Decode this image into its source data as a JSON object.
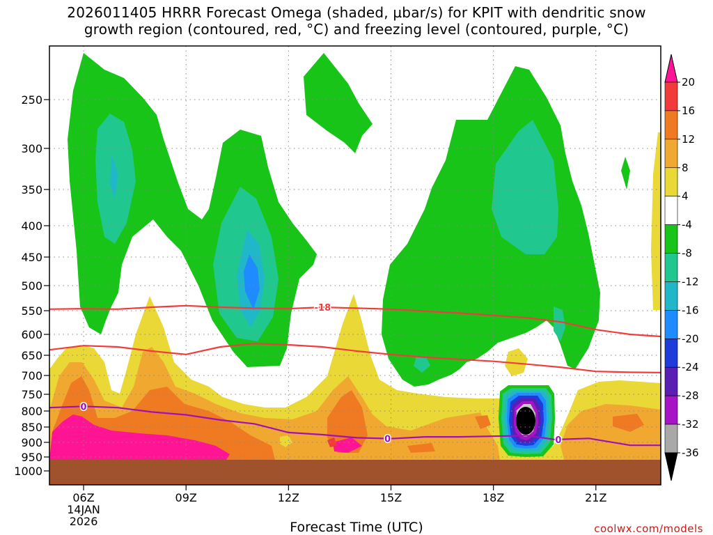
{
  "title_line1": "2026011405 HRRR Forecast Omega (shaded, µbar/s) for KPIT with dendritic snow",
  "title_line2": "growth region (contoured, red, °C) and freezing level (contoured, purple, °C)",
  "credit": "coolwx.com/models",
  "chart_data": {
    "type": "heatmap",
    "title": "2026011405 HRRR Forecast Omega (shaded, µbar/s) for KPIT with dendritic snow growth region (contoured, red, °C) and freezing level (contoured, purple, °C)",
    "xlabel": "Forecast Time (UTC)",
    "ylabel": "",
    "x_ticks": [
      {
        "hour": 6,
        "label": "06Z",
        "date_line1": "14JAN",
        "date_line2": "2026"
      },
      {
        "hour": 9,
        "label": "09Z"
      },
      {
        "hour": 12,
        "label": "12Z"
      },
      {
        "hour": 15,
        "label": "15Z"
      },
      {
        "hour": 18,
        "label": "18Z"
      },
      {
        "hour": 21,
        "label": "21Z"
      }
    ],
    "xlim_hours": [
      5,
      22.9
    ],
    "y_axis": "pressure (hPa), inverted, log-like",
    "y_ticks": [
      250,
      300,
      350,
      400,
      450,
      500,
      550,
      600,
      650,
      700,
      750,
      800,
      850,
      900,
      950,
      1000
    ],
    "ylim": [
      200,
      1025
    ],
    "colorbar": {
      "labels": [
        "20",
        "16",
        "12",
        "8",
        "4",
        "-4",
        "-8",
        "-12",
        "-16",
        "-20",
        "-24",
        "-28",
        "-32",
        "-36"
      ],
      "colors": [
        "#ff1493",
        "#f23a3a",
        "#ef7a22",
        "#f0a830",
        "#e9d835",
        "#ffffff",
        "#17c417",
        "#20c890",
        "#20b8c8",
        "#1e8cff",
        "#1e3cdc",
        "#5a1eb4",
        "#a614c8",
        "#a8a8a8",
        "#000000"
      ]
    },
    "contours": [
      {
        "name": "dendritic-upper",
        "color": "#f03c3c",
        "level": -18,
        "label": "-18",
        "label_at_hour": 13.0,
        "points": [
          [
            5.0,
            547
          ],
          [
            6,
            546
          ],
          [
            7,
            547
          ],
          [
            8,
            543
          ],
          [
            9,
            540
          ],
          [
            10,
            543
          ],
          [
            11,
            545
          ],
          [
            12,
            546
          ],
          [
            13,
            543
          ],
          [
            14,
            545
          ],
          [
            15,
            547
          ],
          [
            16,
            551
          ],
          [
            17,
            555
          ],
          [
            18,
            560
          ],
          [
            19,
            565
          ],
          [
            20,
            574
          ],
          [
            21,
            590
          ],
          [
            22,
            600
          ],
          [
            22.9,
            605
          ]
        ]
      },
      {
        "name": "dendritic-lower",
        "color": "#f03c3c",
        "level": -12,
        "points": [
          [
            5.0,
            637
          ],
          [
            6,
            627
          ],
          [
            7,
            630
          ],
          [
            8,
            640
          ],
          [
            9,
            648
          ],
          [
            10,
            630
          ],
          [
            11,
            622
          ],
          [
            12,
            625
          ],
          [
            13,
            630
          ],
          [
            14,
            640
          ],
          [
            15,
            648
          ],
          [
            16,
            655
          ],
          [
            17,
            660
          ],
          [
            18,
            665
          ],
          [
            19,
            672
          ],
          [
            20,
            680
          ],
          [
            21,
            690
          ],
          [
            22,
            692
          ],
          [
            22.9,
            693
          ]
        ]
      },
      {
        "name": "freezing-level",
        "color": "#a010b4",
        "level": 0,
        "label": "0",
        "label_positions": [
          6.0,
          14.9,
          19.9
        ],
        "points": [
          [
            5.0,
            790
          ],
          [
            6,
            786
          ],
          [
            7,
            790
          ],
          [
            8,
            803
          ],
          [
            9,
            812
          ],
          [
            10,
            828
          ],
          [
            11,
            840
          ],
          [
            12,
            868
          ],
          [
            13,
            875
          ],
          [
            14,
            885
          ],
          [
            15,
            888
          ],
          [
            16,
            882
          ],
          [
            17,
            882
          ],
          [
            18,
            880
          ],
          [
            19,
            878
          ],
          [
            19.8,
            891
          ],
          [
            20.8,
            887
          ],
          [
            22,
            910
          ],
          [
            22.9,
            910
          ]
        ]
      }
    ],
    "omega_regions": [
      {
        "name": "upper-green-left",
        "class": "-8 to -4",
        "color": "#17c417"
      },
      {
        "name": "upper-green-top-center",
        "class": "-8 to -4",
        "color": "#17c417"
      },
      {
        "name": "upper-green-right",
        "class": "-8 to -4",
        "color": "#17c417"
      },
      {
        "name": "teal-cores",
        "class": "-12 to -8",
        "color": "#20c890"
      },
      {
        "name": "cyan-core",
        "class": "-16 to -12",
        "color": "#20b8c8"
      },
      {
        "name": "blue-core",
        "class": "-20 to -16",
        "color": "#1e8cff"
      },
      {
        "name": "lower-yellow",
        "class": "4 to 8",
        "color": "#e9d835"
      },
      {
        "name": "lower-gold",
        "class": "8 to 12",
        "color": "#f0a830"
      },
      {
        "name": "lower-orange",
        "class": "12 to 16",
        "color": "#ef7a22"
      },
      {
        "name": "lower-magenta",
        "class": ">20",
        "color": "#ff1493"
      },
      {
        "name": "strong-ascent-bullseye",
        "class": "< -36",
        "color": "#000000"
      }
    ],
    "ground_color": "#a0522d"
  }
}
